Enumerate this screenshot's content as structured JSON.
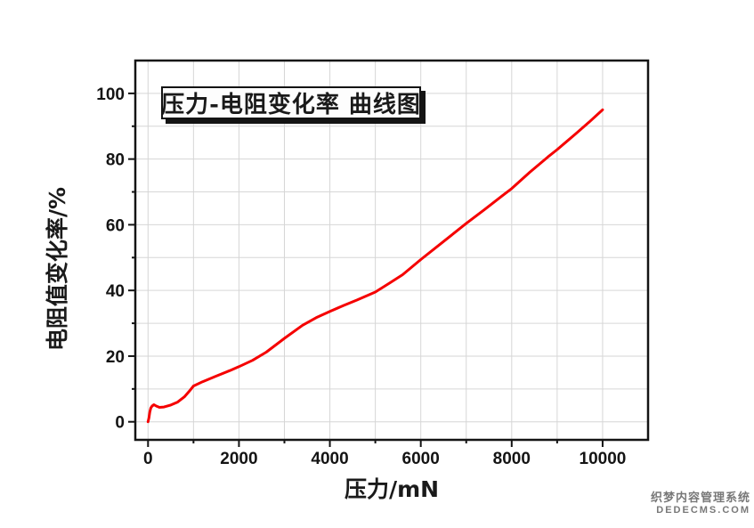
{
  "watermark": {
    "line1": "织梦内容管理系统",
    "line2": "DEDECMS.COM"
  },
  "chart_data": {
    "type": "line",
    "title": "压力-电阻变化率 曲线图",
    "xlabel": "压力/mN",
    "ylabel": "电阻值变化率/%",
    "xlim": [
      -280,
      11000
    ],
    "ylim": [
      -5.5,
      110
    ],
    "xticks_major": [
      0,
      2000,
      4000,
      6000,
      8000,
      10000
    ],
    "xticks_minor": [
      1000,
      3000,
      5000,
      7000,
      9000
    ],
    "yticks_major": [
      0,
      20,
      40,
      60,
      80,
      100
    ],
    "yticks_minor": [
      10,
      30,
      50,
      70,
      90
    ],
    "grid": "light gray gridlines every 1000 mN on x and every 10 % on y",
    "legend_position": "none (title shown in framed box inside plot, top-left)",
    "axis_color": "#141414",
    "grid_color": "#d6d6d6",
    "series": [
      {
        "name": "压力-电阻变化率",
        "color": "#f50000",
        "points": [
          [
            0,
            0
          ],
          [
            20,
            1.2
          ],
          [
            40,
            3.0
          ],
          [
            60,
            4.2
          ],
          [
            90,
            4.8
          ],
          [
            130,
            5.2
          ],
          [
            180,
            4.8
          ],
          [
            250,
            4.4
          ],
          [
            350,
            4.5
          ],
          [
            500,
            5.1
          ],
          [
            650,
            6.0
          ],
          [
            800,
            7.6
          ],
          [
            900,
            9.2
          ],
          [
            1000,
            10.9
          ],
          [
            1200,
            12.2
          ],
          [
            1500,
            13.9
          ],
          [
            1800,
            15.6
          ],
          [
            2000,
            16.8
          ],
          [
            2300,
            18.7
          ],
          [
            2600,
            21.2
          ],
          [
            3000,
            25.4
          ],
          [
            3400,
            29.4
          ],
          [
            3700,
            31.7
          ],
          [
            4000,
            33.6
          ],
          [
            4300,
            35.4
          ],
          [
            4600,
            37.1
          ],
          [
            5000,
            39.5
          ],
          [
            5300,
            42.1
          ],
          [
            5600,
            44.8
          ],
          [
            6000,
            49.4
          ],
          [
            6400,
            53.8
          ],
          [
            6800,
            58.2
          ],
          [
            7000,
            60.4
          ],
          [
            7400,
            64.6
          ],
          [
            7800,
            68.9
          ],
          [
            8000,
            71.0
          ],
          [
            8400,
            76.0
          ],
          [
            8800,
            80.7
          ],
          [
            9000,
            82.9
          ],
          [
            9400,
            87.6
          ],
          [
            9700,
            91.2
          ],
          [
            10000,
            95.0
          ]
        ]
      }
    ]
  }
}
